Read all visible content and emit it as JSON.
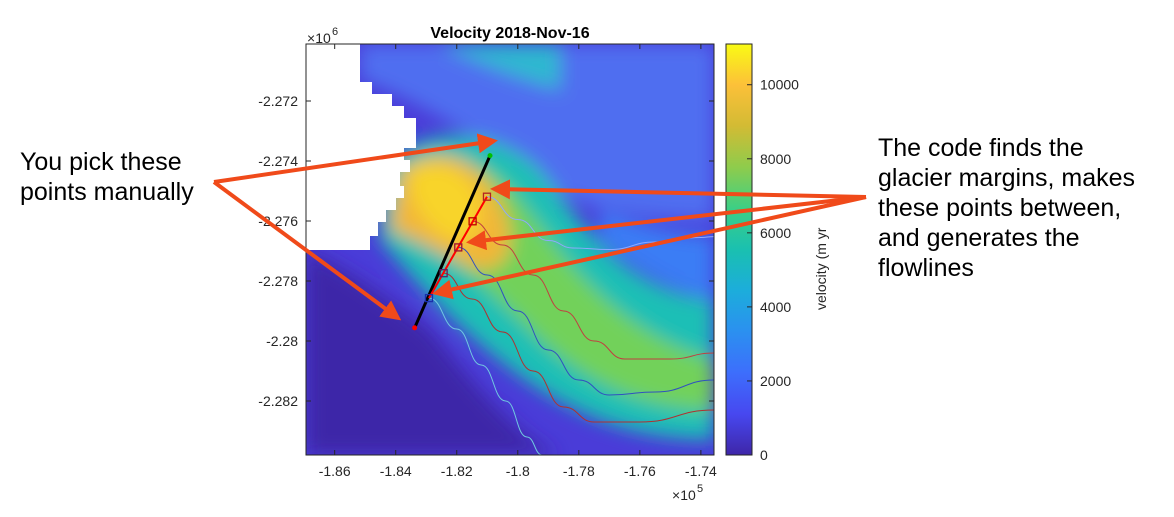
{
  "chart_data": {
    "type": "heatmap",
    "title": "Velocity 2018-Nov-16",
    "x_ticks": [
      -1.86,
      -1.84,
      -1.82,
      -1.8,
      -1.78,
      -1.76,
      -1.74
    ],
    "x_tick_labels": [
      "-1.86",
      "-1.84",
      "-1.82",
      "-1.8",
      "-1.78",
      "-1.76",
      "-1.74"
    ],
    "x_exponent": "10",
    "x_exponent_power": "5",
    "xlim": [
      -1.8694,
      -1.7357
    ],
    "y_ticks": [
      -2.272,
      -2.274,
      -2.276,
      -2.278,
      -2.28,
      -2.282
    ],
    "y_tick_labels": [
      "-2.272",
      "-2.274",
      "-2.276",
      "-2.278",
      "-2.28",
      "-2.282"
    ],
    "y_exponent": "10",
    "y_exponent_power": "6",
    "ylim": [
      -2.2838,
      -2.2701
    ],
    "colorbar": {
      "label": "velocity (m yr",
      "ticks": [
        0,
        2000,
        4000,
        6000,
        8000,
        10000
      ],
      "tick_labels": [
        "0",
        "2000",
        "4000",
        "6000",
        "8000",
        "10000"
      ],
      "range": [
        0,
        11100
      ],
      "colormap": "parula"
    },
    "profile_line": {
      "color": "#000000",
      "start": {
        "x": -1.8338,
        "y": -2.27956,
        "color": "#ff0000"
      },
      "end": {
        "x": -1.8091,
        "y": -2.27382,
        "color": "#00c000"
      }
    },
    "selected_segment_color": "#ff0000",
    "markers": [
      {
        "x": -1.8101,
        "y": -2.27519,
        "color": "#b22222"
      },
      {
        "x": -1.8148,
        "y": -2.27601,
        "color": "#c00000"
      },
      {
        "x": -1.8195,
        "y": -2.27688,
        "color": "#a01030"
      },
      {
        "x": -1.8243,
        "y": -2.27774,
        "color": "#602060"
      },
      {
        "x": -1.8291,
        "y": -2.27857,
        "color": "#1a2eaa"
      }
    ],
    "flowlines": [
      {
        "color": "#8fa8ff",
        "points": [
          [
            -1.8101,
            -2.27519
          ],
          [
            -1.8,
            -2.27595
          ],
          [
            -1.79,
            -2.27665
          ],
          [
            -1.782,
            -2.2769
          ],
          [
            -1.77,
            -2.27695
          ],
          [
            -1.755,
            -2.2767
          ],
          [
            -1.74,
            -2.27655
          ],
          [
            -1.7357,
            -2.27652
          ]
        ]
      },
      {
        "color": "#c04040",
        "points": [
          [
            -1.8148,
            -2.27601
          ],
          [
            -1.805,
            -2.2768
          ],
          [
            -1.795,
            -2.2778
          ],
          [
            -1.785,
            -2.279
          ],
          [
            -1.775,
            -2.28
          ],
          [
            -1.765,
            -2.2806
          ],
          [
            -1.75,
            -2.2806
          ],
          [
            -1.7357,
            -2.2804
          ]
        ]
      },
      {
        "color": "#3050c0",
        "points": [
          [
            -1.8195,
            -2.27688
          ],
          [
            -1.81,
            -2.2778
          ],
          [
            -1.8,
            -2.279
          ],
          [
            -1.79,
            -2.2803
          ],
          [
            -1.78,
            -2.2813
          ],
          [
            -1.77,
            -2.2818
          ],
          [
            -1.755,
            -2.2817
          ],
          [
            -1.7357,
            -2.2813
          ]
        ]
      },
      {
        "color": "#b03030",
        "points": [
          [
            -1.8243,
            -2.27774
          ],
          [
            -1.815,
            -2.2786
          ],
          [
            -1.805,
            -2.2797
          ],
          [
            -1.795,
            -2.281
          ],
          [
            -1.785,
            -2.2822
          ],
          [
            -1.775,
            -2.2827
          ],
          [
            -1.76,
            -2.2827
          ],
          [
            -1.7357,
            -2.2823
          ]
        ]
      },
      {
        "color": "#70c8e0",
        "points": [
          [
            -1.8291,
            -2.27857
          ],
          [
            -1.82,
            -2.2796
          ],
          [
            -1.812,
            -2.2808
          ],
          [
            -1.804,
            -2.282
          ],
          [
            -1.797,
            -2.2832
          ],
          [
            -1.792,
            -2.2838
          ]
        ]
      }
    ],
    "grid": false
  },
  "annotations": {
    "left_text": "You pick these\npoints manually",
    "right_text": "The code finds the\nglacier margins, makes\nthese points between,\nand generates the\nflowlines",
    "arrow_color": "#f04a1a"
  }
}
